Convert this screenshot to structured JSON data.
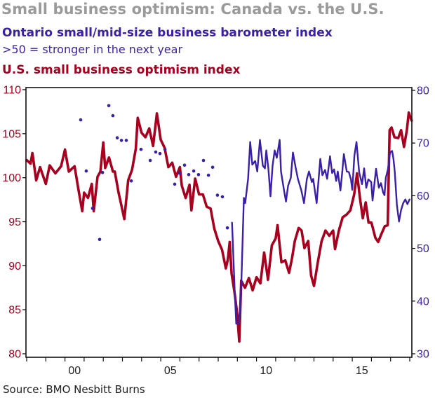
{
  "chart_data": {
    "type": "line",
    "title": "Small business optimism: Canada vs. the U.S.",
    "subtitle_blue": "Ontario small/mid-size business barometer index",
    "subtitle_blue_note": ">50 = stronger in the next year",
    "subtitle_red": "U.S. small business optimism index",
    "source": "Source: BMO Nesbitt Burns",
    "colors": {
      "red": "#a8001e",
      "blue": "#3a1fa8",
      "title": "#9a9a9a"
    },
    "x_range": [
      1998.0,
      2018.2
    ],
    "x_tick_years": [
      1998,
      1999,
      2000,
      2001,
      2002,
      2003,
      2004,
      2005,
      2006,
      2007,
      2008,
      2009,
      2010,
      2011,
      2012,
      2013,
      2014,
      2015,
      2016,
      2017,
      2018
    ],
    "x_labels": [
      {
        "year": 2000,
        "label": "00"
      },
      {
        "year": 2005,
        "label": "05"
      },
      {
        "year": 2010,
        "label": "10"
      },
      {
        "year": 2015,
        "label": "15"
      }
    ],
    "left_axis": {
      "label": "U.S. small business optimism index",
      "range": [
        80,
        110
      ],
      "ticks": [
        "80",
        "85",
        "90",
        "95",
        "100",
        "105",
        "110"
      ]
    },
    "right_axis": {
      "label": "Ontario barometer index",
      "range": [
        30,
        80
      ],
      "ticks": [
        "30",
        "40",
        "50",
        "60",
        "70",
        "80"
      ]
    },
    "legend": "top-left (as colored subtitles)",
    "grid": false,
    "series": [
      {
        "name": "U.S. small business optimism index",
        "axis": "left",
        "style": "line",
        "points": [
          [
            1998.0,
            102.0
          ],
          [
            1998.2,
            101.6
          ],
          [
            1998.3,
            102.8
          ],
          [
            1998.5,
            99.7
          ],
          [
            1998.7,
            101.2
          ],
          [
            1999.0,
            99.3
          ],
          [
            1999.2,
            101.4
          ],
          [
            1999.5,
            100.5
          ],
          [
            1999.8,
            101.3
          ],
          [
            2000.0,
            103.2
          ],
          [
            2000.2,
            100.7
          ],
          [
            2000.5,
            101.3
          ],
          [
            2000.7,
            98.7
          ],
          [
            2000.9,
            96.2
          ],
          [
            2001.0,
            98.3
          ],
          [
            2001.2,
            97.7
          ],
          [
            2001.4,
            99.3
          ],
          [
            2001.5,
            96.2
          ],
          [
            2001.7,
            100.1
          ],
          [
            2001.85,
            100.7
          ],
          [
            2002.0,
            104.0
          ],
          [
            2002.1,
            101.1
          ],
          [
            2002.3,
            102.3
          ],
          [
            2002.5,
            100.7
          ],
          [
            2002.6,
            100.7
          ],
          [
            2002.8,
            98.3
          ],
          [
            2002.9,
            97.3
          ],
          [
            2003.1,
            95.3
          ],
          [
            2003.3,
            99.7
          ],
          [
            2003.5,
            100.9
          ],
          [
            2003.7,
            103.3
          ],
          [
            2003.8,
            106.8
          ],
          [
            2004.0,
            105.1
          ],
          [
            2004.2,
            104.6
          ],
          [
            2004.4,
            105.6
          ],
          [
            2004.6,
            103.6
          ],
          [
            2004.8,
            107.3
          ],
          [
            2005.0,
            104.3
          ],
          [
            2005.2,
            103.4
          ],
          [
            2005.4,
            101.2
          ],
          [
            2005.6,
            101.7
          ],
          [
            2005.8,
            100.1
          ],
          [
            2006.0,
            101.2
          ],
          [
            2006.1,
            99.1
          ],
          [
            2006.3,
            97.7
          ],
          [
            2006.5,
            99.2
          ],
          [
            2006.6,
            96.3
          ],
          [
            2006.8,
            99.9
          ],
          [
            2007.0,
            98.1
          ],
          [
            2007.2,
            98.1
          ],
          [
            2007.4,
            96.7
          ],
          [
            2007.6,
            96.5
          ],
          [
            2007.8,
            94.2
          ],
          [
            2008.0,
            92.8
          ],
          [
            2008.2,
            91.8
          ],
          [
            2008.4,
            89.7
          ],
          [
            2008.5,
            90.7
          ],
          [
            2008.6,
            92.7
          ],
          [
            2008.7,
            89.1
          ],
          [
            2008.85,
            87.0
          ],
          [
            2009.0,
            84.4
          ],
          [
            2009.1,
            81.4
          ],
          [
            2009.2,
            88.3
          ],
          [
            2009.4,
            87.5
          ],
          [
            2009.6,
            88.6
          ],
          [
            2009.8,
            87.2
          ],
          [
            2010.0,
            88.7
          ],
          [
            2010.2,
            88.0
          ],
          [
            2010.4,
            91.5
          ],
          [
            2010.6,
            88.4
          ],
          [
            2010.8,
            92.3
          ],
          [
            2011.0,
            93.1
          ],
          [
            2011.1,
            94.6
          ],
          [
            2011.3,
            90.4
          ],
          [
            2011.5,
            90.6
          ],
          [
            2011.7,
            89.2
          ],
          [
            2011.85,
            90.8
          ],
          [
            2012.0,
            92.8
          ],
          [
            2012.2,
            94.3
          ],
          [
            2012.35,
            94.0
          ],
          [
            2012.5,
            92.0
          ],
          [
            2012.7,
            92.8
          ],
          [
            2012.85,
            88.9
          ],
          [
            2013.0,
            87.7
          ],
          [
            2013.2,
            90.4
          ],
          [
            2013.4,
            92.8
          ],
          [
            2013.6,
            94.0
          ],
          [
            2013.8,
            93.4
          ],
          [
            2014.0,
            94.0
          ],
          [
            2014.1,
            91.9
          ],
          [
            2014.3,
            94.0
          ],
          [
            2014.5,
            95.5
          ],
          [
            2014.7,
            95.8
          ],
          [
            2014.9,
            96.3
          ],
          [
            2015.1,
            98.1
          ],
          [
            2015.25,
            100.5
          ],
          [
            2015.4,
            97.7
          ],
          [
            2015.55,
            95.4
          ],
          [
            2015.7,
            97.2
          ],
          [
            2015.85,
            94.9
          ],
          [
            2016.0,
            94.9
          ],
          [
            2016.2,
            93.2
          ],
          [
            2016.35,
            92.7
          ],
          [
            2016.5,
            93.5
          ],
          [
            2016.7,
            94.5
          ],
          [
            2016.85,
            94.6
          ],
          [
            2016.95,
            105.4
          ],
          [
            2017.05,
            105.7
          ],
          [
            2017.2,
            104.6
          ],
          [
            2017.4,
            104.5
          ],
          [
            2017.55,
            105.4
          ],
          [
            2017.7,
            103.5
          ],
          [
            2017.85,
            105.4
          ],
          [
            2017.95,
            107.4
          ],
          [
            2018.1,
            106.5
          ]
        ]
      },
      {
        "name": "Ontario small/mid-size business barometer index (line)",
        "axis": "right",
        "style": "line",
        "points": [
          [
            2008.72,
            54.9
          ],
          [
            2008.86,
            42.0
          ],
          [
            2008.94,
            35.7
          ],
          [
            2009.08,
            35.7
          ],
          [
            2009.19,
            41.3
          ],
          [
            2009.34,
            59.6
          ],
          [
            2009.41,
            58.6
          ],
          [
            2009.56,
            63.2
          ],
          [
            2009.67,
            70.2
          ],
          [
            2009.78,
            65.9
          ],
          [
            2009.93,
            66.6
          ],
          [
            2010.04,
            64.6
          ],
          [
            2010.18,
            70.6
          ],
          [
            2010.33,
            65.7
          ],
          [
            2010.44,
            65.2
          ],
          [
            2010.51,
            68.6
          ],
          [
            2010.62,
            65.2
          ],
          [
            2010.73,
            59.9
          ],
          [
            2010.84,
            65.7
          ],
          [
            2010.95,
            68.6
          ],
          [
            2011.06,
            67.2
          ],
          [
            2011.21,
            70.6
          ],
          [
            2011.28,
            64.6
          ],
          [
            2011.43,
            61.2
          ],
          [
            2011.54,
            58.9
          ],
          [
            2011.65,
            61.9
          ],
          [
            2011.79,
            63.4
          ],
          [
            2011.9,
            68.2
          ],
          [
            2012.05,
            65.2
          ],
          [
            2012.16,
            63.2
          ],
          [
            2012.34,
            61.0
          ],
          [
            2012.48,
            58.6
          ],
          [
            2012.63,
            63.2
          ],
          [
            2012.74,
            64.6
          ],
          [
            2012.89,
            62.6
          ],
          [
            2012.96,
            63.2
          ],
          [
            2013.14,
            58.6
          ],
          [
            2013.33,
            67.0
          ],
          [
            2013.44,
            63.9
          ],
          [
            2013.58,
            64.9
          ],
          [
            2013.69,
            63.2
          ],
          [
            2013.84,
            67.5
          ],
          [
            2013.95,
            64.3
          ],
          [
            2014.05,
            65.0
          ],
          [
            2014.16,
            62.8
          ],
          [
            2014.24,
            64.6
          ],
          [
            2014.38,
            61.0
          ],
          [
            2014.45,
            63.5
          ],
          [
            2014.56,
            67.9
          ],
          [
            2014.71,
            64.6
          ],
          [
            2014.82,
            64.5
          ],
          [
            2014.93,
            63.1
          ],
          [
            2015.0,
            61.1
          ],
          [
            2015.11,
            67.6
          ],
          [
            2015.22,
            70.2
          ],
          [
            2015.36,
            64.5
          ],
          [
            2015.51,
            62.2
          ],
          [
            2015.62,
            65.2
          ],
          [
            2015.73,
            61.5
          ],
          [
            2015.84,
            63.1
          ],
          [
            2015.99,
            62.6
          ],
          [
            2016.06,
            59.1
          ],
          [
            2016.24,
            65.1
          ],
          [
            2016.39,
            61.5
          ],
          [
            2016.5,
            62.4
          ],
          [
            2016.61,
            60.6
          ],
          [
            2016.68,
            60.1
          ],
          [
            2016.75,
            63.4
          ],
          [
            2016.86,
            65.0
          ],
          [
            2016.97,
            68.2
          ],
          [
            2017.08,
            68.5
          ],
          [
            2017.15,
            67.0
          ],
          [
            2017.22,
            64.5
          ],
          [
            2017.33,
            58.2
          ],
          [
            2017.44,
            55.1
          ],
          [
            2017.55,
            57.3
          ],
          [
            2017.66,
            58.6
          ],
          [
            2017.77,
            59.3
          ],
          [
            2017.88,
            58.4
          ],
          [
            2017.99,
            59.3
          ]
        ]
      },
      {
        "name": "Ontario small/mid-size business barometer index (dots)",
        "axis": "right",
        "style": "dots",
        "points": [
          [
            2000.82,
            74.4
          ],
          [
            2001.11,
            64.7
          ],
          [
            2001.44,
            57.6
          ],
          [
            2001.81,
            51.7
          ],
          [
            2001.96,
            64.4
          ],
          [
            2002.29,
            77.1
          ],
          [
            2002.5,
            75.2
          ],
          [
            2002.73,
            71.0
          ],
          [
            2002.95,
            70.5
          ],
          [
            2003.2,
            70.5
          ],
          [
            2003.46,
            62.8
          ],
          [
            2003.97,
            68.8
          ],
          [
            2004.45,
            66.7
          ],
          [
            2004.74,
            68.3
          ],
          [
            2004.96,
            68.0
          ],
          [
            2005.22,
            68.8
          ],
          [
            2005.73,
            62.2
          ],
          [
            2005.99,
            64.3
          ],
          [
            2006.24,
            65.8
          ],
          [
            2006.46,
            64.0
          ],
          [
            2006.72,
            64.7
          ],
          [
            2006.97,
            64.0
          ],
          [
            2007.23,
            66.7
          ],
          [
            2007.49,
            63.9
          ],
          [
            2007.71,
            65.4
          ],
          [
            2007.96,
            60.1
          ],
          [
            2008.22,
            59.8
          ],
          [
            2008.48,
            53.9
          ]
        ]
      }
    ]
  }
}
